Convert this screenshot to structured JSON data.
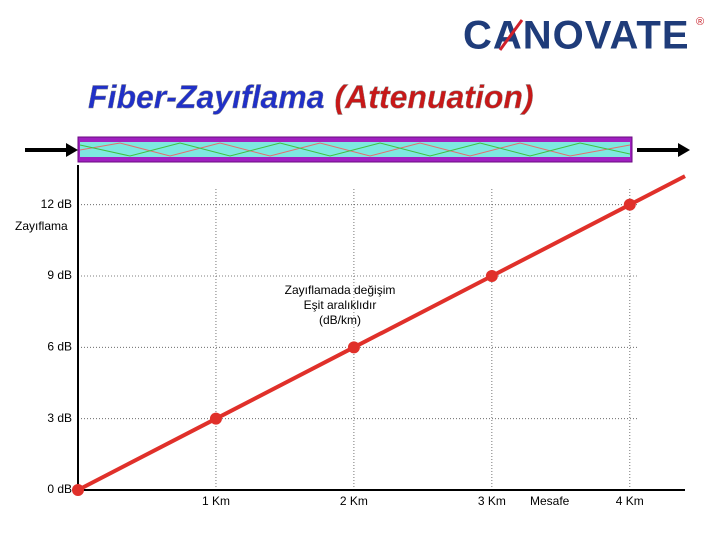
{
  "logo": {
    "text": "CANOVATE",
    "mark": "®"
  },
  "chart_data": {
    "type": "line",
    "title": "Fiber-Zayıflama",
    "subtitle": "(Attenuation)",
    "y_label": "Zayıflama",
    "x_label": "Mesafe",
    "annotation": [
      "Zayıflamada değişim",
      "Eşit aralıklıdır",
      "(dB/km)"
    ],
    "x": [
      0,
      1,
      2,
      3,
      4
    ],
    "series": [
      {
        "name": "Zayıflama",
        "color": "#e0302a",
        "values": [
          0,
          3,
          6,
          9,
          12
        ]
      }
    ],
    "xlim": [
      0,
      4.4
    ],
    "ylim": [
      0,
      13.5
    ],
    "xticks": [
      {
        "value": 1,
        "label": "1 Km"
      },
      {
        "value": 2,
        "label": "2 Km"
      },
      {
        "value": 3,
        "label": "3 Km"
      },
      {
        "value": 4,
        "label": "4 Km"
      }
    ],
    "yticks": [
      {
        "value": 0,
        "label": "0 dB"
      },
      {
        "value": 3,
        "label": "3 dB"
      },
      {
        "value": 6,
        "label": "6 dB"
      },
      {
        "value": 9,
        "label": "9 dB"
      },
      {
        "value": 12,
        "label": "12 dB"
      }
    ],
    "grid": true
  }
}
